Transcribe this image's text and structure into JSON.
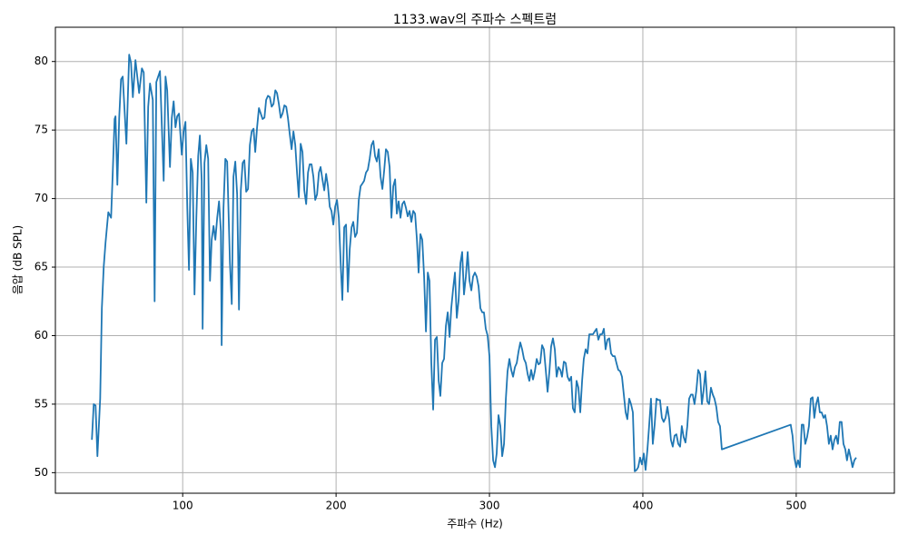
{
  "chart_data": {
    "type": "line",
    "title": "1133.wav의 주파수 스펙트럼",
    "x_label": "주파수 (Hz)",
    "y_label": "음압 (dB SPL)",
    "x": [
      40.8,
      42,
      43.2,
      44.4,
      46.2,
      47.3,
      48.5,
      49.7,
      51.5,
      53.3,
      54.4,
      55.6,
      56.2,
      57.4,
      58.6,
      59.8,
      60.9,
      63.3,
      65.1,
      66.3,
      67.5,
      69.2,
      70.4,
      71.6,
      73.4,
      74.6,
      76.3,
      77.5,
      78.7,
      80.5,
      81.7,
      82.8,
      85.2,
      87.6,
      88.8,
      89.9,
      91.7,
      92.9,
      94.1,
      95.3,
      96.4,
      97.6,
      99.4,
      100.6,
      101.8,
      103,
      104.1,
      105.3,
      106.5,
      107.7,
      108.9,
      110.1,
      111.2,
      112.4,
      113,
      114.2,
      115.4,
      116.6,
      117.8,
      118.9,
      120.1,
      121.3,
      122.5,
      123.7,
      124.9,
      125.4,
      126.6,
      127.8,
      129,
      130.8,
      132,
      133.1,
      134.3,
      135.5,
      136.7,
      137.9,
      139.1,
      140.2,
      141.4,
      142.6,
      143.8,
      145,
      146.2,
      147.3,
      148.5,
      149.7,
      150.9,
      152.1,
      153.3,
      154.4,
      155.6,
      156.8,
      158,
      159.2,
      160.4,
      161.5,
      162.7,
      163.9,
      165.1,
      166.3,
      167.5,
      168.6,
      169.8,
      171,
      172.2,
      173.4,
      174.6,
      175.7,
      176.9,
      178.1,
      179.3,
      180.5,
      181.7,
      182.8,
      184,
      185.2,
      186.4,
      187.6,
      188.8,
      189.9,
      191.1,
      192.3,
      193.5,
      194.7,
      195.9,
      197,
      198.2,
      199.4,
      200.6,
      201.8,
      203,
      204.1,
      205.3,
      206.5,
      207.7,
      208.9,
      210.1,
      211.2,
      212.4,
      213.6,
      214.8,
      216,
      217.2,
      218.3,
      219.5,
      220.7,
      221.9,
      223.1,
      224.3,
      225.4,
      226.6,
      227.8,
      229,
      230.2,
      231.4,
      232.5,
      233.7,
      234.9,
      236.1,
      237.3,
      238.5,
      239.6,
      240.8,
      242,
      243.2,
      244.4,
      245.6,
      246.7,
      247.9,
      249.1,
      250.3,
      251.5,
      252.7,
      253.8,
      255,
      256.2,
      257.4,
      258.6,
      259.8,
      260.9,
      262.1,
      263.3,
      264.5,
      265.7,
      266.9,
      268,
      269.2,
      270.4,
      271.6,
      272.8,
      274,
      275.1,
      276.3,
      277.5,
      278.7,
      279.9,
      281.1,
      282.2,
      283.4,
      284.6,
      285.8,
      287,
      288.2,
      289.3,
      290.5,
      291.7,
      292.9,
      294.1,
      295.3,
      296.4,
      297.6,
      298.8,
      300,
      301.2,
      302.4,
      303.6,
      304.7,
      305.9,
      307.1,
      308.3,
      309.5,
      310.7,
      311.8,
      313,
      314.2,
      315.4,
      316.6,
      317.8,
      318.9,
      320.1,
      321.3,
      322.5,
      323.7,
      324.9,
      326,
      327.2,
      328.4,
      329.6,
      330.8,
      332,
      333.1,
      334.3,
      335.5,
      336.7,
      337.9,
      339.1,
      340.2,
      341.4,
      342.6,
      343.8,
      345,
      346.2,
      347.3,
      348.5,
      349.7,
      350.9,
      352.1,
      353.3,
      354.4,
      355.6,
      356.8,
      358,
      359.2,
      360.4,
      361.5,
      362.7,
      363.9,
      365.1,
      366.3,
      367.5,
      368.6,
      369.8,
      371,
      372.2,
      373.4,
      374.6,
      375.7,
      376.9,
      378.1,
      379.3,
      380.5,
      381.7,
      382.8,
      384,
      385.2,
      386.4,
      387.6,
      388.8,
      389.9,
      391.1,
      392.3,
      393.5,
      394.7,
      395.9,
      397,
      398.2,
      399.4,
      400.6,
      401.8,
      403,
      404.1,
      405.3,
      406.5,
      407.7,
      408.9,
      410.1,
      411.2,
      412.4,
      413.6,
      414.8,
      416,
      417.2,
      418.3,
      419.5,
      420.7,
      421.9,
      423.1,
      424.3,
      425.4,
      426.6,
      427.8,
      429,
      430.2,
      431.4,
      432.5,
      433.7,
      434.9,
      436.1,
      437.3,
      438.5,
      439.6,
      440.8,
      442,
      443.2,
      444.4,
      445.6,
      446.7,
      447.9,
      449.1,
      450.3,
      451.5,
      496.4,
      497.6,
      498.8,
      500,
      501.2,
      502.4,
      503.6,
      504.7,
      505.9,
      507.1,
      508.3,
      509.5,
      510.7,
      511.8,
      513,
      514.2,
      515.4,
      516.6,
      517.8,
      518.9,
      520.1,
      521.3,
      522.5,
      523.7,
      524.9,
      526,
      527.2,
      528.4,
      529.6,
      530.8,
      532,
      533.1,
      534.3,
      535.5,
      536.7,
      537.9,
      539.1
    ],
    "series": [
      {
        "color": "#1f77b4",
        "values": [
          52.4,
          55,
          54.9,
          51.2,
          55.4,
          62,
          65,
          66.8,
          69,
          68.6,
          71.9,
          75.8,
          76,
          71,
          75.9,
          78.7,
          78.9,
          74,
          80.5,
          79.9,
          77.4,
          80.1,
          78.9,
          77.7,
          79.5,
          79.2,
          69.7,
          76.7,
          78.4,
          77.2,
          62.5,
          78.5,
          79.3,
          71.3,
          78.9,
          77.9,
          72.3,
          75.9,
          77.1,
          75.2,
          76,
          76.2,
          73.2,
          74.9,
          75.6,
          69.3,
          64.8,
          72.9,
          71.9,
          63,
          68.6,
          73.1,
          74.6,
          71.3,
          60.5,
          72.6,
          73.9,
          72.9,
          64,
          67,
          68,
          67,
          68.6,
          69.8,
          67.6,
          59.3,
          69.3,
          72.9,
          72.7,
          65.3,
          62.3,
          71.6,
          72.7,
          70.3,
          61.9,
          70.6,
          72.6,
          72.8,
          70.5,
          70.7,
          73.9,
          74.9,
          75.1,
          73.4,
          75.2,
          76.6,
          76.2,
          75.8,
          75.9,
          77.2,
          77.5,
          77.4,
          76.7,
          76.9,
          77.9,
          77.7,
          76.9,
          75.9,
          76.2,
          76.8,
          76.7,
          75.9,
          74.7,
          73.6,
          74.9,
          73.9,
          71.8,
          70.1,
          74,
          73.4,
          70.6,
          69.6,
          71.9,
          72.5,
          72.5,
          71.6,
          69.9,
          70.3,
          71.9,
          72.3,
          71.4,
          70.6,
          71.8,
          70.9,
          69.4,
          69.1,
          68.1,
          69.4,
          69.9,
          68.6,
          65.3,
          62.6,
          67.9,
          68.1,
          63.2,
          66.3,
          67.9,
          68.3,
          67.2,
          67.5,
          69.9,
          70.9,
          71.1,
          71.3,
          71.9,
          72.1,
          72.9,
          73.9,
          74.2,
          73.1,
          72.7,
          73.6,
          71.6,
          70.7,
          72.1,
          73.6,
          73.4,
          72.3,
          68.6,
          70.9,
          71.4,
          68.9,
          69.8,
          68.6,
          69.6,
          69.8,
          69.3,
          68.7,
          69.1,
          68.3,
          69.1,
          68.9,
          67,
          64.6,
          67.4,
          67,
          64.3,
          60.3,
          64.6,
          64,
          58,
          54.6,
          59.7,
          59.9,
          56.7,
          55.6,
          58,
          58.3,
          60.7,
          61.7,
          59.9,
          62,
          63.4,
          64.6,
          61.3,
          62.6,
          65.3,
          66.1,
          63,
          64.3,
          66.1,
          64,
          63.3,
          64.3,
          64.6,
          64.3,
          63.6,
          62,
          61.7,
          61.7,
          60.5,
          60,
          58.5,
          53.4,
          50.9,
          50.4,
          51.4,
          54.2,
          53.4,
          51.2,
          52.1,
          55.4,
          57.4,
          58.3,
          57.5,
          57,
          57.7,
          58,
          58.8,
          59.5,
          59,
          58.3,
          58,
          57.2,
          56.7,
          57.5,
          56.8,
          57.4,
          58.3,
          57.9,
          58,
          59.3,
          59,
          57.5,
          55.9,
          57.4,
          59.2,
          59.8,
          59,
          57,
          57.7,
          57.5,
          57,
          58.1,
          58,
          57,
          56.7,
          57,
          54.7,
          54.4,
          56.7,
          56.2,
          54.4,
          56.7,
          58.3,
          59,
          58.7,
          60.1,
          60.1,
          60.1,
          60.3,
          60.5,
          59.7,
          60.1,
          60.1,
          60.5,
          59,
          59.7,
          59.8,
          58.7,
          58.5,
          58.5,
          58,
          57.5,
          57.4,
          57,
          55.7,
          54.4,
          53.9,
          55.4,
          55,
          54.4,
          50.1,
          50.2,
          50.4,
          51.1,
          50.6,
          51.4,
          50.2,
          51.7,
          53.4,
          55.4,
          52.1,
          53.5,
          55.4,
          55.3,
          55.3,
          54,
          53.7,
          54,
          54.8,
          53.9,
          52.4,
          51.9,
          52.7,
          52.8,
          52.1,
          51.9,
          53.4,
          52.6,
          52.2,
          53.4,
          55.4,
          55.7,
          55.7,
          55,
          56,
          57.5,
          57.2,
          55,
          56,
          57.4,
          55.2,
          55,
          56.2,
          55.7,
          55.4,
          54.8,
          53.7,
          53.4,
          51.7,
          53.5,
          52.7,
          51.1,
          50.4,
          50.9,
          50.4,
          53.5,
          53.5,
          52.1,
          52.6,
          53.4,
          55.4,
          55.5,
          54,
          55,
          55.5,
          54.4,
          54.4,
          54,
          54.2,
          53.4,
          52.1,
          52.7,
          51.7,
          52.4,
          52.7,
          52.1,
          53.7,
          53.7,
          52.1,
          51.7,
          50.9,
          51.7,
          51.1,
          50.4,
          50.9,
          51.1
        ]
      }
    ],
    "xlim": [
      17,
      564
    ],
    "ylim": [
      48.5,
      82.5
    ],
    "xticks": [
      100,
      200,
      300,
      400,
      500
    ],
    "yticks": [
      50,
      55,
      60,
      65,
      70,
      75,
      80
    ],
    "grid": true
  }
}
